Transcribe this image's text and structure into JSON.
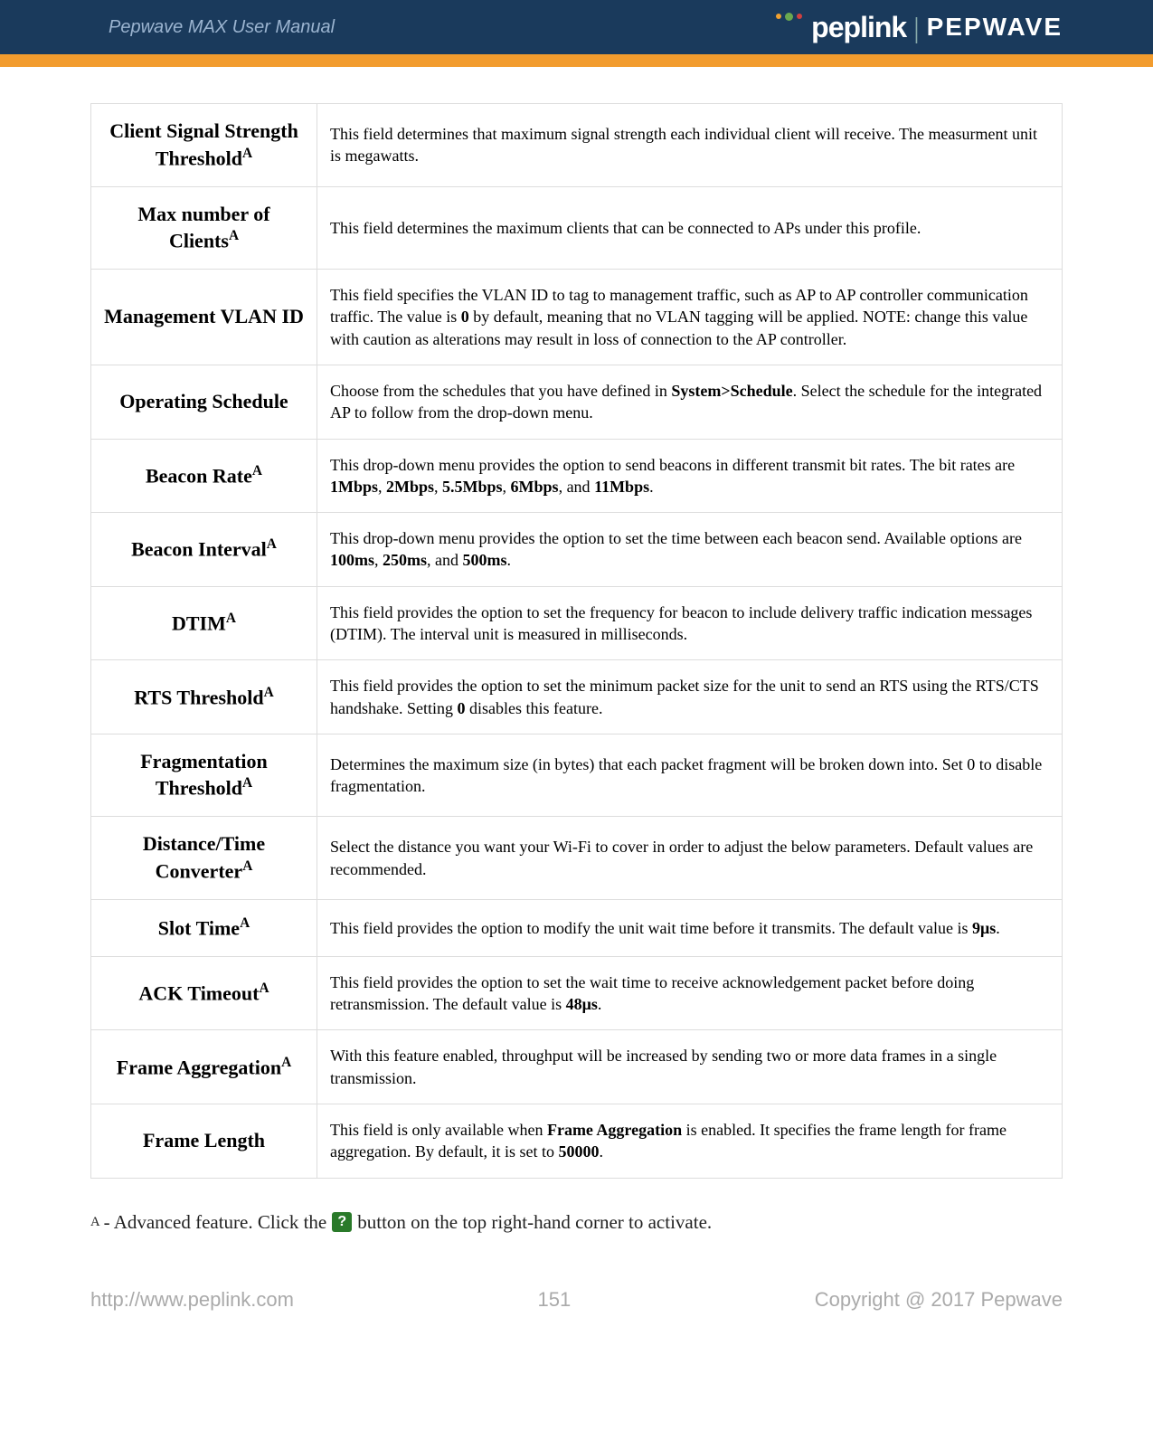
{
  "header": {
    "left_text": "Pepwave MAX User Manual",
    "logo_left": "peplink",
    "logo_right": "PEPWAVE",
    "header_bg": "#1a3a5c",
    "orange_bar_bg": "#f29c2e",
    "dot_colors": [
      "#f0a030",
      "#6aa84f",
      "#d04040"
    ]
  },
  "rows": [
    {
      "label_html": "Client Signal Strength Threshold<sup>A</sup>",
      "desc_html": "This field determines that maximum signal strength each individual client will receive. The measurment unit is megawatts."
    },
    {
      "label_html": "Max number of Clients<sup>A</sup>",
      "desc_html": "This field determines the maximum clients that can be connected to APs under this profile."
    },
    {
      "label_html": "Management VLAN ID",
      "desc_html": "This field specifies the VLAN ID to tag to management traffic, such as AP to AP controller communication traffic. The value is <b>0</b> by default, meaning that no VLAN tagging will be applied. NOTE: change this value with caution as alterations may result in loss of connection to the AP controller."
    },
    {
      "label_html": "Operating Schedule",
      "desc_html": "Choose from the schedules that you have defined in <b>System&gt;Schedule</b>. Select the schedule for the integrated AP to follow from the drop-down menu."
    },
    {
      "label_html": "Beacon Rate<sup>A</sup>",
      "desc_html": "This drop-down menu provides the option to send beacons in different transmit bit rates. The bit rates are <b>1Mbps</b>, <b>2Mbps</b>, <b>5.5Mbps</b>, <b>6Mbps</b>, and <b>11Mbps</b>."
    },
    {
      "label_html": "Beacon Interval<sup>A</sup>",
      "desc_html": "This drop-down menu provides the option to set the time between each beacon send. Available options are <b>100ms</b>, <b>250ms</b>, and <b>500ms</b>."
    },
    {
      "label_html": "DTIM<sup>A</sup>",
      "desc_html": "This field provides the option to set the frequency for beacon to include delivery traffic indication messages (DTIM). The interval unit is measured in milliseconds."
    },
    {
      "label_html": "RTS Threshold<sup>A</sup>",
      "desc_html": "This field provides the option to set the minimum packet size for the unit to send an RTS using the RTS/CTS handshake. Setting <b>0</b> disables this feature."
    },
    {
      "label_html": "Fragmentation Threshold<sup>A</sup>",
      "desc_html": "Determines the maximum size (in bytes) that each packet fragment will be broken down into. Set 0 to disable fragmentation."
    },
    {
      "label_html": "Distance/Time Converter<sup>A</sup>",
      "desc_html": "Select the distance you want your Wi-Fi to cover in order to adjust the below parameters. Default values are recommended."
    },
    {
      "label_html": "Slot Time<sup>A</sup>",
      "desc_html": "This field provides the option to modify the unit wait time before it transmits. The default value is <b>9&#956;s</b>."
    },
    {
      "label_html": "ACK Timeout<sup>A</sup>",
      "desc_html": "This field provides the option to set the wait time to receive acknowledgement packet before doing retransmission. The default value is <b>48&#956;s</b>."
    },
    {
      "label_html": "Frame Aggregation<sup>A</sup>",
      "desc_html": "With this feature enabled, throughput will be increased by sending two or more data frames in a single transmission."
    },
    {
      "label_html": "Frame Length",
      "desc_html": "This field is only available when <b>Frame Aggregation</b> is enabled. It specifies the frame length for frame aggregation. By default, it is set to <b>50000</b>."
    }
  ],
  "footnote": {
    "prefix": "A",
    "text_before": " - Advanced feature. Click the ",
    "icon": "?",
    "text_after": " button on the top right-hand corner to activate."
  },
  "footer": {
    "url": "http://www.peplink.com",
    "page": "151",
    "copyright": "Copyright @ 2017 Pepwave"
  }
}
